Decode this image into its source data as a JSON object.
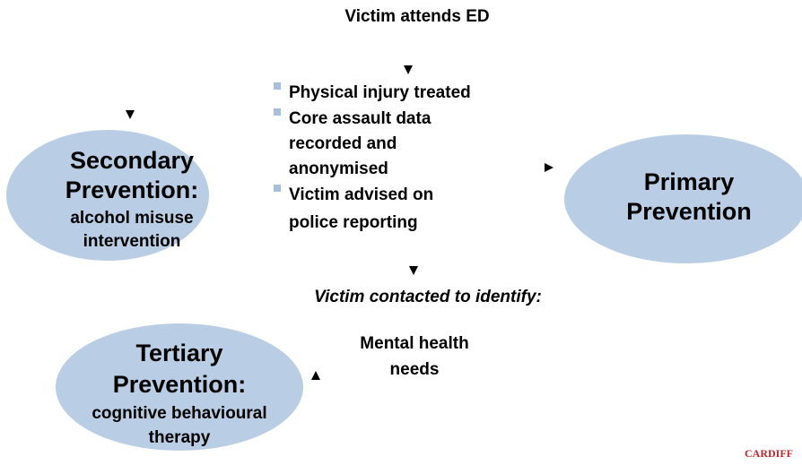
{
  "header": {
    "title": "Victim attends ED"
  },
  "steps": {
    "items": [
      [
        "Physical injury treated"
      ],
      [
        "Core assault data",
        "recorded and",
        "anonymised"
      ],
      [
        "Victim advised on",
        "police reporting"
      ]
    ]
  },
  "followup": {
    "title": "Victim contacted to identify:",
    "needs": [
      "Mental health",
      "needs"
    ]
  },
  "nodes": [
    {
      "title": [
        "Secondary",
        "Prevention:"
      ],
      "detail": [
        "alcohol misuse",
        "intervention"
      ]
    },
    {
      "title": [
        "Primary",
        "Prevention"
      ]
    },
    {
      "title": [
        "Tertiary",
        "Prevention:"
      ],
      "detail": [
        "cognitive behavioural",
        "therapy"
      ]
    }
  ],
  "logo": "CARDIFF"
}
